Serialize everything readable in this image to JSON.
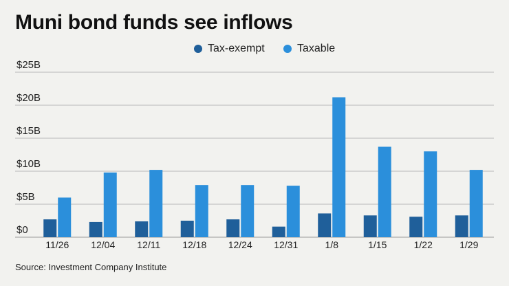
{
  "title": "Muni bond funds see inflows",
  "source": "Source: Investment Company Institute",
  "colors": {
    "tax_exempt": "#1f5f9a",
    "taxable": "#2b8fdb",
    "grid": "#b8b8b8",
    "background": "#f2f2ef"
  },
  "chart_data": {
    "type": "bar",
    "title": "Muni bond funds see inflows",
    "xlabel": "",
    "ylabel": "",
    "categories": [
      "11/26",
      "12/04",
      "12/11",
      "12/18",
      "12/24",
      "12/31",
      "1/8",
      "1/15",
      "1/22",
      "1/29"
    ],
    "series": [
      {
        "name": "Tax-exempt",
        "values": [
          2.7,
          2.3,
          2.4,
          2.5,
          2.7,
          1.6,
          3.6,
          3.3,
          3.1,
          3.3
        ]
      },
      {
        "name": "Taxable",
        "values": [
          6.0,
          9.8,
          10.2,
          7.9,
          7.9,
          7.8,
          21.2,
          13.7,
          13.0,
          10.2
        ]
      }
    ],
    "ylim": [
      0,
      25
    ],
    "yticks": [
      0,
      5,
      10,
      15,
      20,
      25
    ],
    "ytick_labels": [
      "$0",
      "$5B",
      "$10B",
      "$15B",
      "$20B",
      "$25B"
    ],
    "grid": true,
    "legend_position": "top-center"
  }
}
